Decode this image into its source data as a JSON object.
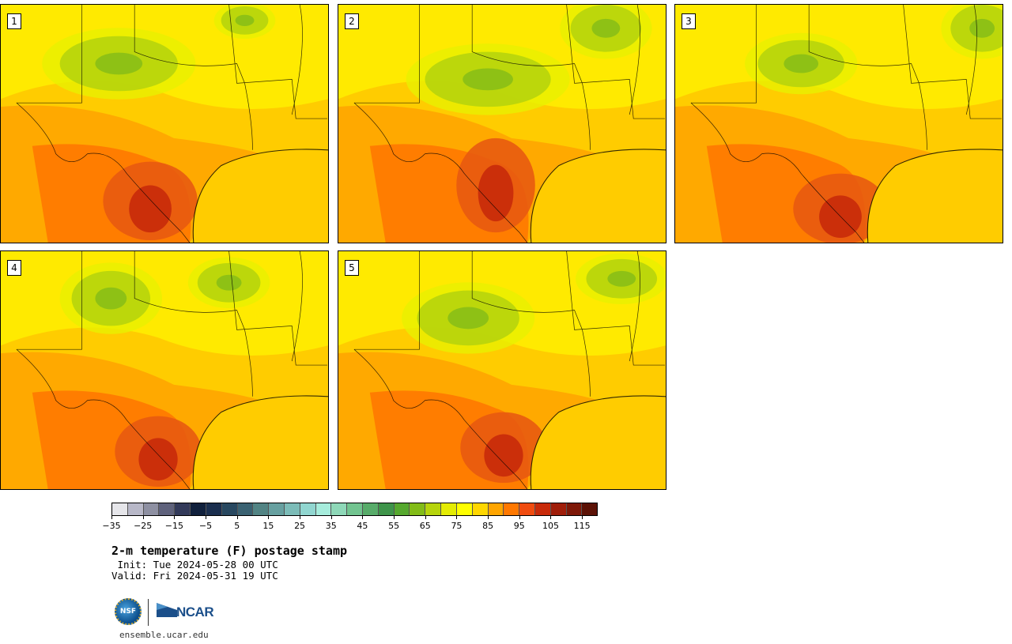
{
  "title": "2-m temperature (F) postage stamp",
  "init": " Init: Tue 2024-05-28 00 UTC",
  "valid": "Valid: Fri 2024-05-31 19 UTC",
  "site": "ensemble.ucar.edu",
  "logos": {
    "nsf_text": "NSF",
    "ncar_text": "NCAR"
  },
  "members": [
    {
      "label": "1"
    },
    {
      "label": "2"
    },
    {
      "label": "3"
    },
    {
      "label": "4"
    },
    {
      "label": "5"
    }
  ],
  "colorbar": {
    "colors": [
      "#e6e6ea",
      "#b8b8c8",
      "#8e90a2",
      "#5f627c",
      "#333a5a",
      "#10203c",
      "#1a2e4e",
      "#284860",
      "#3a6272",
      "#528484",
      "#67a0a0",
      "#7cbcb8",
      "#91d6d0",
      "#a6ecdc",
      "#8ed8b8",
      "#72c490",
      "#58ac6a",
      "#3e944a",
      "#56a82e",
      "#82bc18",
      "#b6d40c",
      "#e4ec04",
      "#ffff00",
      "#ffd700",
      "#ffa500",
      "#ff7800",
      "#f04c10",
      "#c82a0a",
      "#a01e0a",
      "#7e1808",
      "#5c1206"
    ],
    "ticks": [
      "−35",
      "−25",
      "−15",
      "−5",
      "5",
      "15",
      "25",
      "35",
      "45",
      "55",
      "65",
      "75",
      "85",
      "95",
      "105",
      "115"
    ]
  }
}
